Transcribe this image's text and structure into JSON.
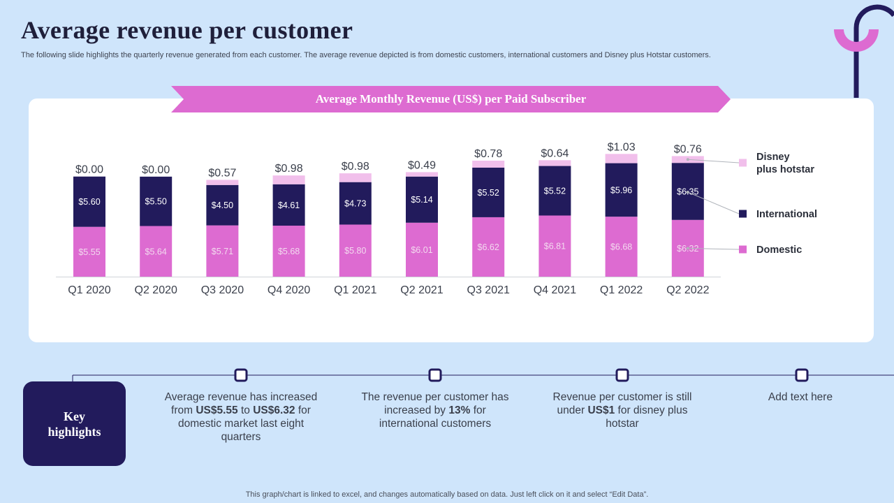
{
  "header": {
    "title": "Average revenue per customer",
    "subtitle": "The following slide highlights the quarterly revenue generated from each customer. The average revenue depicted is from domestic customers, international customers and Disney plus Hotstar customers."
  },
  "colors": {
    "domestic": "#dd6bd1",
    "international": "#221b5c",
    "hotstar": "#f1bfeb",
    "banner": "#dd6bd1",
    "background": "#cfe5fb"
  },
  "chart_data": {
    "type": "bar",
    "stacked": true,
    "title": "Average Monthly Revenue (US$) per Paid Subscriber",
    "categories": [
      "Q1 2020",
      "Q2 2020",
      "Q3 2020",
      "Q4 2020",
      "Q1 2021",
      "Q2 2021",
      "Q3 2021",
      "Q4 2021",
      "Q1 2022",
      "Q2 2022"
    ],
    "series": [
      {
        "name": "Domestic",
        "values": [
          5.55,
          5.64,
          5.71,
          5.68,
          5.8,
          6.01,
          6.62,
          6.81,
          6.68,
          6.32
        ],
        "labels": [
          "$5.55",
          "$5.64",
          "$5.71",
          "$5.68",
          "$5.80",
          "$6.01",
          "$6.62",
          "$6.81",
          "$6.68",
          "$6.32"
        ]
      },
      {
        "name": "International",
        "values": [
          5.6,
          5.5,
          4.5,
          4.61,
          4.73,
          5.14,
          5.52,
          5.52,
          5.96,
          6.35
        ],
        "labels": [
          "$5.60",
          "$5.50",
          "$4.50",
          "$4.61",
          "$4.73",
          "$5.14",
          "$5.52",
          "$5.52",
          "$5.96",
          "$6.35"
        ]
      },
      {
        "name": "Disney plus hotstar",
        "values": [
          0.0,
          0.0,
          0.57,
          0.98,
          0.98,
          0.49,
          0.78,
          0.64,
          1.03,
          0.76
        ],
        "labels": [
          "$0.00",
          "$0.00",
          "$0.57",
          "$0.98",
          "$0.98",
          "$0.49",
          "$0.78",
          "$0.64",
          "$1.03",
          "$0.76"
        ]
      }
    ],
    "legend": [
      {
        "line1": "Disney",
        "line2": "plus hotstar"
      },
      {
        "line1": "International",
        "line2": ""
      },
      {
        "line1": "Domestic",
        "line2": ""
      }
    ],
    "legend_position": "right",
    "ylim": [
      0,
      14
    ]
  },
  "highlights": {
    "box_line1": "Key",
    "box_line2": "highlights",
    "items": [
      {
        "p1": "Average revenue has increased from ",
        "b1": "US$5.55",
        "p2": " to ",
        "b2": "US$6.32",
        "p3": " for domestic market last eight quarters"
      },
      {
        "p1": "The revenue per customer has increased by ",
        "b1": "13%",
        "p2": " for international customers",
        "b2": "",
        "p3": ""
      },
      {
        "p1": "Revenue per customer is still under ",
        "b1": "US$1",
        "p2": " for disney plus hotstar",
        "b2": "",
        "p3": ""
      },
      {
        "p1": "Add text here",
        "b1": "",
        "p2": "",
        "b2": "",
        "p3": ""
      }
    ]
  },
  "footer": "This graph/chart is linked to excel,  and changes automatically based on data. Just left click on it and select “Edit Data”."
}
